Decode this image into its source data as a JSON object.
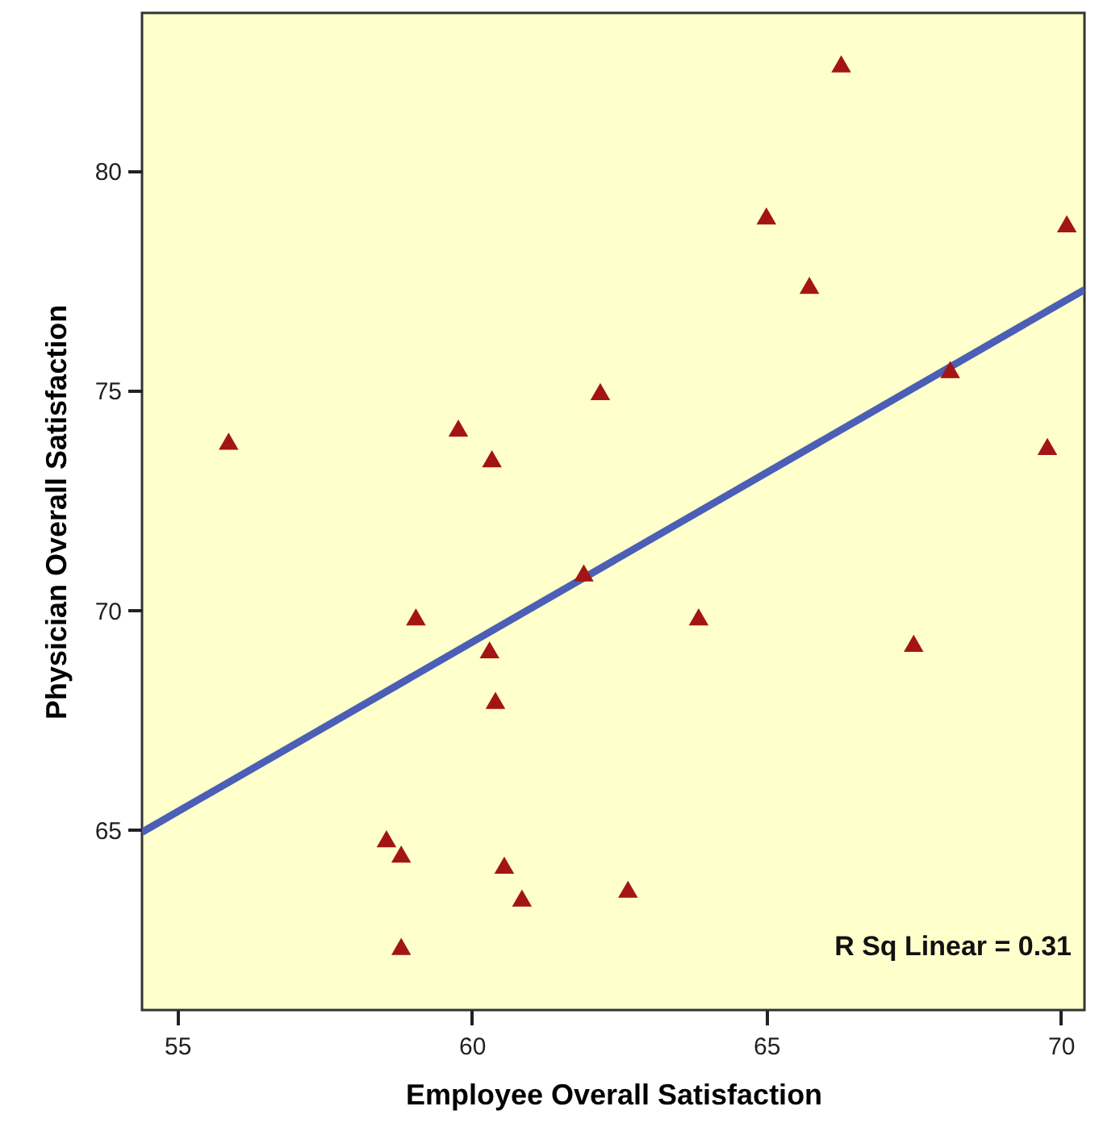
{
  "chart_data": {
    "type": "scatter",
    "xlabel": "Employee Overall Satisfaction",
    "ylabel": "Physician Overall Satisfaction",
    "xlim": [
      54.4,
      70.4
    ],
    "xticks": [
      55,
      60,
      65,
      70
    ],
    "ylim": [
      60.9,
      83.6
    ],
    "yticks": [
      65,
      70,
      75,
      80
    ],
    "grid": false,
    "annotations": [
      "R Sq Linear = 0.31"
    ],
    "series": [
      {
        "color": "#a31515",
        "marker": "triangle",
        "x": [
          55.87,
          59.77,
          60.34,
          62.18,
          65.0,
          66.27,
          65.73,
          68.12,
          70.1,
          69.77,
          61.9,
          59.05,
          60.3,
          60.4,
          63.85,
          67.5,
          58.55,
          58.8,
          60.55,
          60.85,
          62.65,
          58.8
        ],
        "values": [
          73.85,
          74.15,
          73.45,
          74.98,
          78.98,
          82.44,
          77.4,
          75.48,
          78.8,
          73.73,
          70.85,
          69.85,
          69.1,
          67.95,
          69.85,
          69.25,
          64.8,
          64.45,
          64.2,
          63.45,
          63.65,
          62.35
        ]
      },
      {
        "type": "line",
        "color": "#4a5fb5",
        "x": [
          54.4,
          70.4
        ],
        "values": [
          64.95,
          77.3
        ]
      }
    ]
  }
}
